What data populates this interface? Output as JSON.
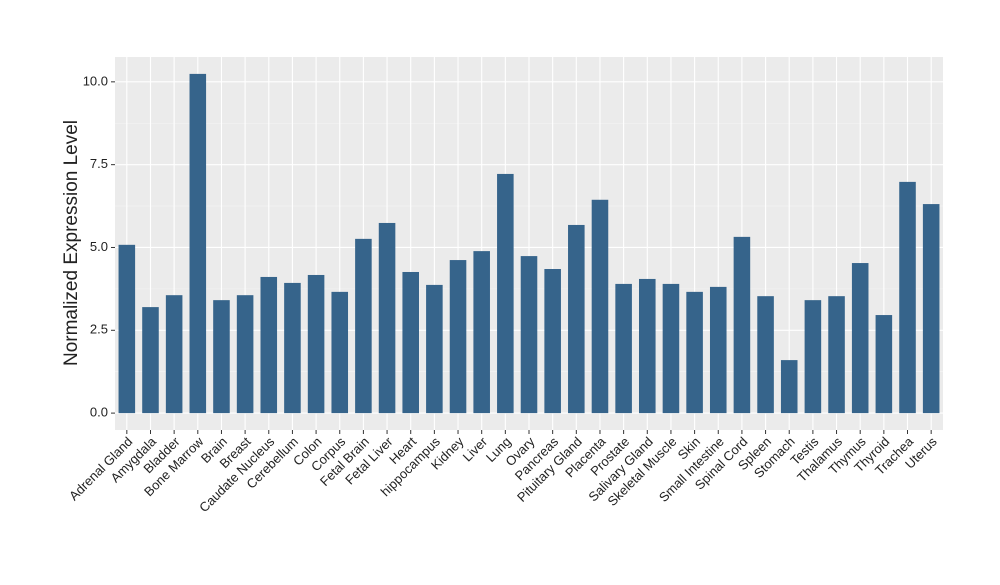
{
  "chart_data": {
    "type": "bar",
    "y_label": "Normalized Expression Level",
    "categories": [
      "Adrenal Gland",
      "Amygdala",
      "Bladder",
      "Bone Marrow",
      "Brain",
      "Breast",
      "Caudate Nucleus",
      "Cerebellum",
      "Colon",
      "Corpus",
      "Fetal Brain",
      "Fetal Liver",
      "Heart",
      "hippocampus",
      "Kidney",
      "Liver",
      "Lung",
      "Ovary",
      "Pancreas",
      "Pituitary Gland",
      "Placenta",
      "Prostate",
      "Salivary Gland",
      "Skeletal Muscle",
      "Skin",
      "Small Intestine",
      "Spinal Cord",
      "Spleen",
      "Stomach",
      "Testis",
      "Thalamus",
      "Thymus",
      "Thyroid",
      "Trachea",
      "Uterus"
    ],
    "values": [
      5.08,
      3.2,
      3.56,
      10.24,
      3.41,
      3.56,
      4.11,
      3.93,
      4.17,
      3.66,
      5.26,
      5.74,
      4.26,
      3.87,
      4.62,
      4.89,
      7.22,
      4.74,
      4.35,
      5.68,
      6.44,
      3.9,
      4.05,
      3.9,
      3.66,
      3.81,
      5.32,
      3.53,
      1.6,
      3.41,
      3.53,
      4.53,
      2.96,
      6.98,
      6.31
    ],
    "color": "#36648b",
    "ylim": [
      -0.51,
      10.75
    ],
    "yticks": [
      {
        "value": 0,
        "label": "0.0"
      },
      2.5,
      {
        "value": 5,
        "label": "5.0"
      },
      7.5,
      {
        "value": 10,
        "label": "10.0"
      }
    ],
    "grid": true
  }
}
